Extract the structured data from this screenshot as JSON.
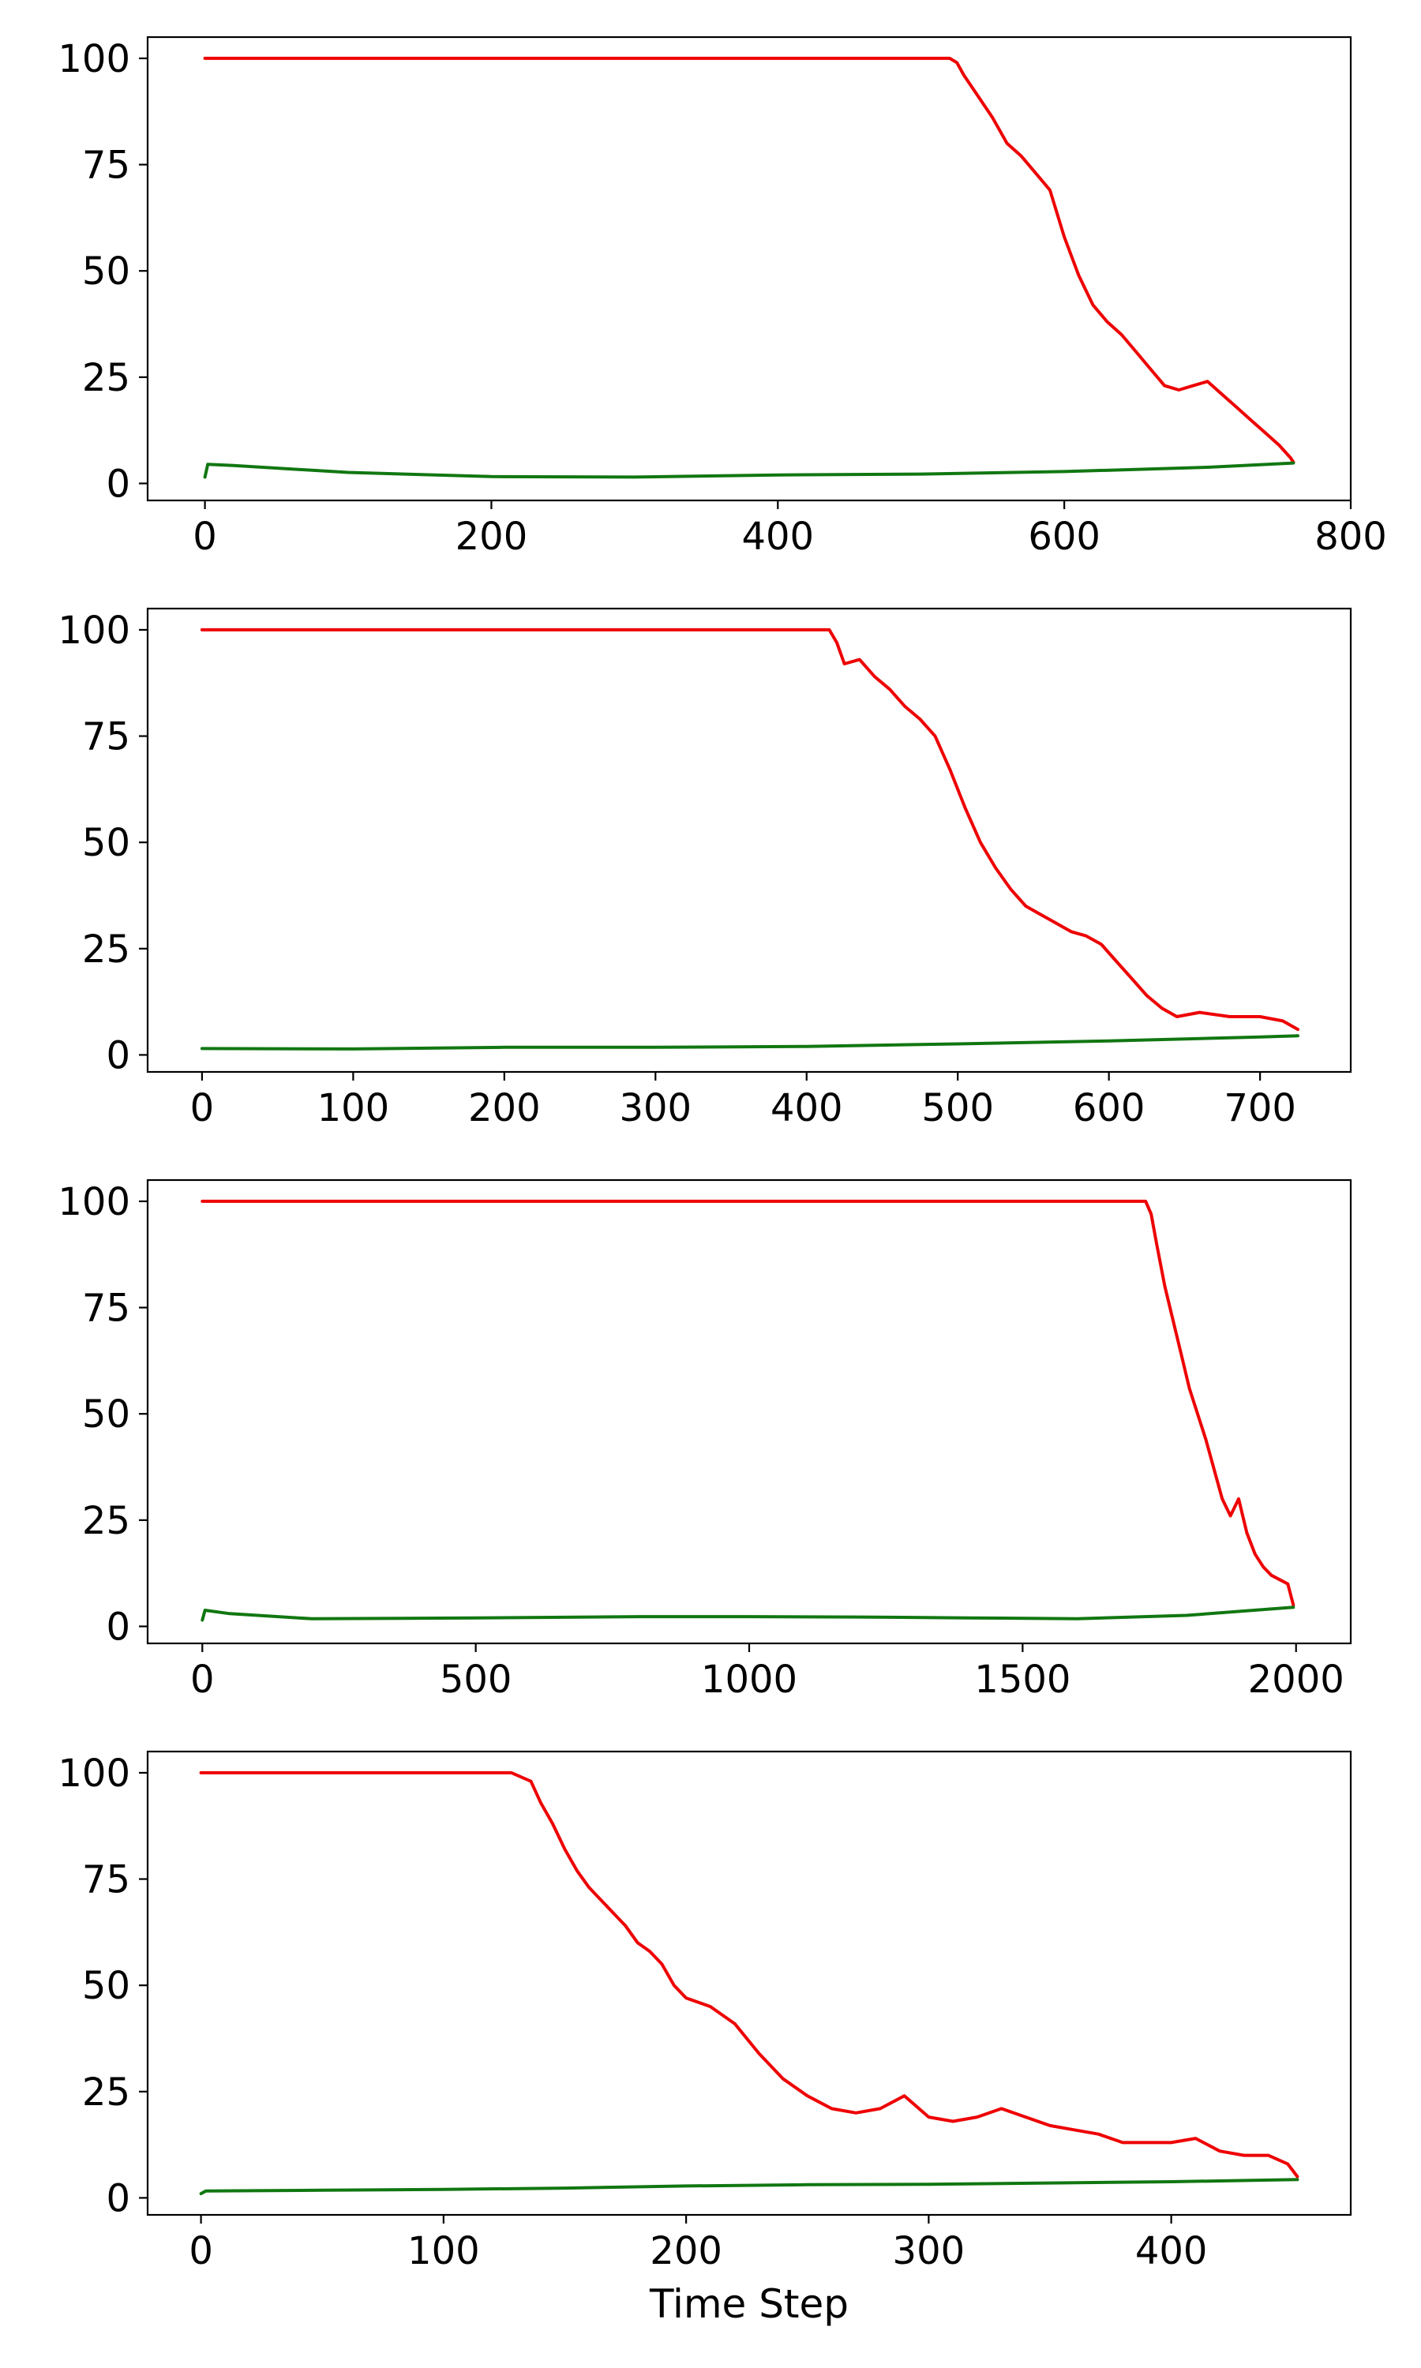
{
  "chart_data": [
    {
      "type": "line",
      "title": "",
      "xlabel": "",
      "ylabel": "",
      "xlim": [
        -40,
        800
      ],
      "ylim": [
        -4,
        105
      ],
      "xticks": [
        0,
        200,
        400,
        600,
        800
      ],
      "yticks": [
        0,
        25,
        50,
        75,
        100
      ],
      "grid": false,
      "series": [
        {
          "color": "#ee0000",
          "x": [
            0,
            520,
            525,
            530,
            540,
            550,
            560,
            570,
            580,
            590,
            600,
            610,
            620,
            630,
            640,
            650,
            660,
            670,
            680,
            690,
            700,
            710,
            720,
            730,
            740,
            750,
            758,
            760
          ],
          "y": [
            100,
            100,
            99,
            96,
            91,
            86,
            80,
            77,
            73,
            69,
            58,
            49,
            42,
            38,
            35,
            31,
            27,
            23,
            22,
            23,
            24,
            21,
            18,
            15,
            12,
            9,
            6,
            5
          ]
        },
        {
          "color": "#117711",
          "x": [
            0,
            2,
            20,
            100,
            200,
            300,
            400,
            500,
            600,
            700,
            760
          ],
          "y": [
            1.5,
            4.5,
            4.2,
            2.6,
            1.6,
            1.5,
            2.0,
            2.2,
            2.8,
            3.8,
            4.8
          ]
        }
      ]
    },
    {
      "type": "line",
      "title": "",
      "xlabel": "",
      "ylabel": "",
      "xlim": [
        -36,
        760
      ],
      "ylim": [
        -4,
        105
      ],
      "xticks": [
        0,
        100,
        200,
        300,
        400,
        500,
        600,
        700
      ],
      "yticks": [
        0,
        25,
        50,
        75,
        100
      ],
      "grid": false,
      "series": [
        {
          "color": "#ee0000",
          "x": [
            0,
            415,
            420,
            425,
            435,
            445,
            455,
            465,
            475,
            485,
            495,
            505,
            515,
            525,
            535,
            545,
            555,
            565,
            575,
            585,
            595,
            605,
            615,
            625,
            635,
            645,
            660,
            680,
            700,
            715,
            725
          ],
          "y": [
            100,
            100,
            97,
            92,
            93,
            89,
            86,
            82,
            79,
            75,
            67,
            58,
            50,
            44,
            39,
            35,
            33,
            31,
            29,
            28,
            26,
            22,
            18,
            14,
            11,
            9,
            10,
            9,
            9,
            8,
            6
          ]
        },
        {
          "color": "#117711",
          "x": [
            0,
            100,
            200,
            300,
            400,
            500,
            600,
            700,
            725
          ],
          "y": [
            1.5,
            1.4,
            1.8,
            1.8,
            2.0,
            2.6,
            3.3,
            4.2,
            4.5
          ]
        }
      ]
    },
    {
      "type": "line",
      "title": "",
      "xlabel": "",
      "ylabel": "",
      "xlim": [
        -100,
        2100
      ],
      "ylim": [
        -4,
        105
      ],
      "xticks": [
        0,
        500,
        1000,
        1500,
        2000
      ],
      "yticks": [
        0,
        25,
        50,
        75,
        100
      ],
      "grid": false,
      "series": [
        {
          "color": "#ee0000",
          "x": [
            0,
            1725,
            1735,
            1745,
            1760,
            1775,
            1790,
            1805,
            1820,
            1835,
            1850,
            1865,
            1880,
            1895,
            1910,
            1925,
            1940,
            1955,
            1970,
            1985,
            1995
          ],
          "y": [
            100,
            100,
            97,
            90,
            80,
            72,
            64,
            56,
            50,
            44,
            37,
            30,
            26,
            30,
            22,
            17,
            14,
            12,
            11,
            10,
            5
          ]
        },
        {
          "color": "#117711",
          "x": [
            0,
            5,
            50,
            200,
            500,
            800,
            1000,
            1200,
            1400,
            1600,
            1800,
            1995
          ],
          "y": [
            1.5,
            3.8,
            3.0,
            1.8,
            2.0,
            2.3,
            2.3,
            2.2,
            2.0,
            1.8,
            2.6,
            4.5
          ]
        }
      ]
    },
    {
      "type": "line",
      "title": "",
      "xlabel": "Time Step",
      "ylabel": "",
      "xlim": [
        -22,
        474
      ],
      "ylim": [
        -4,
        105
      ],
      "xticks": [
        0,
        100,
        200,
        300,
        400
      ],
      "yticks": [
        0,
        25,
        50,
        75,
        100
      ],
      "grid": false,
      "series": [
        {
          "color": "#ee0000",
          "x": [
            0,
            128,
            132,
            136,
            140,
            145,
            150,
            155,
            160,
            165,
            170,
            175,
            180,
            185,
            190,
            195,
            200,
            210,
            220,
            230,
            240,
            250,
            260,
            270,
            280,
            290,
            300,
            310,
            320,
            330,
            340,
            350,
            360,
            370,
            380,
            390,
            400,
            410,
            420,
            430,
            440,
            448,
            452
          ],
          "y": [
            100,
            100,
            99,
            98,
            93,
            88,
            82,
            77,
            73,
            70,
            67,
            64,
            60,
            58,
            55,
            50,
            47,
            45,
            41,
            34,
            28,
            24,
            21,
            20,
            21,
            24,
            19,
            18,
            19,
            21,
            19,
            17,
            16,
            15,
            13,
            13,
            13,
            14,
            11,
            10,
            10,
            8,
            5
          ]
        },
        {
          "color": "#117711",
          "x": [
            0,
            2,
            50,
            100,
            150,
            200,
            250,
            300,
            350,
            400,
            452
          ],
          "y": [
            1.0,
            1.6,
            1.8,
            2.0,
            2.3,
            2.8,
            3.1,
            3.2,
            3.5,
            3.8,
            4.3
          ]
        }
      ]
    }
  ]
}
